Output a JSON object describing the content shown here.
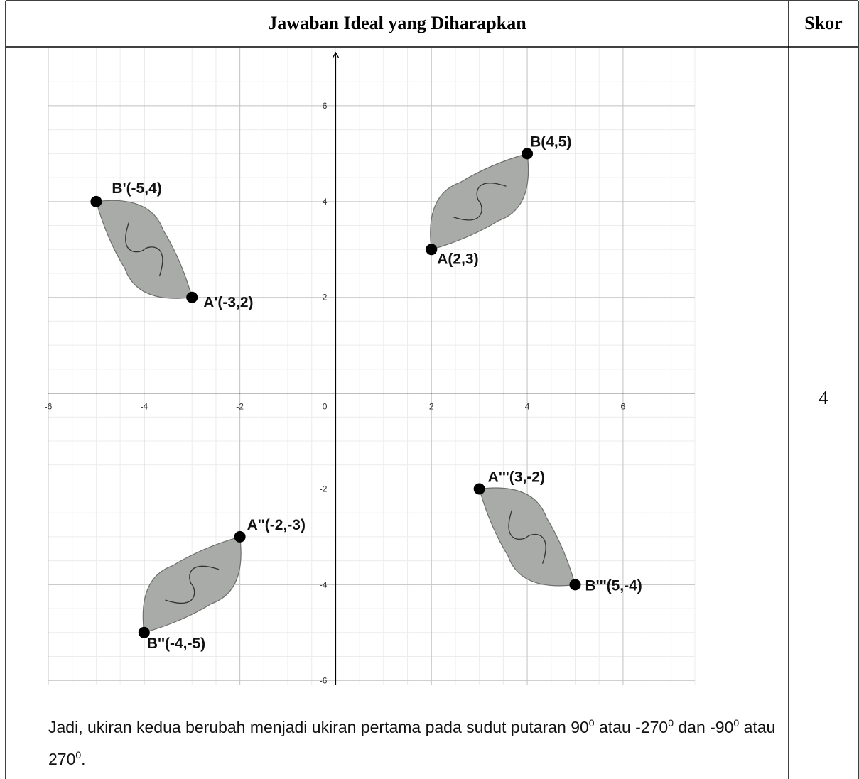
{
  "table": {
    "headers": [
      "Jawaban Ideal yang Diharapkan",
      "Skor"
    ],
    "score": "4"
  },
  "chart_data": {
    "type": "scatter",
    "x": [
      4,
      2,
      -5,
      -3,
      -2,
      -4,
      3,
      5
    ],
    "values": [
      5,
      3,
      4,
      2,
      -3,
      -5,
      -2,
      -4
    ],
    "labels": [
      "B(4,5)",
      "A(2,3)",
      "B'(-5,4)",
      "A'(-3,2)",
      "A''(-2,-3)",
      "B''(-4,-5)",
      "A'''(3,-2)",
      "B'''(5,-4)"
    ],
    "xlim": [
      -6,
      7.5
    ],
    "ylim": [
      -6.1,
      7.2
    ],
    "xticks": [
      -6,
      -4,
      -2,
      0,
      2,
      4,
      6
    ],
    "yticks": [
      -6,
      -4,
      -2,
      2,
      4,
      6
    ],
    "grid": true,
    "minor_grid_step": 0.5,
    "color": "#000000"
  },
  "conclusion": [
    "Jadi, ukiran kedua berubah menjadi ukiran pertama pada sudut putaran 90",
    "0",
    " atau -270",
    "0",
    " dan -90",
    "0",
    " atau 270",
    "0",
    "."
  ]
}
